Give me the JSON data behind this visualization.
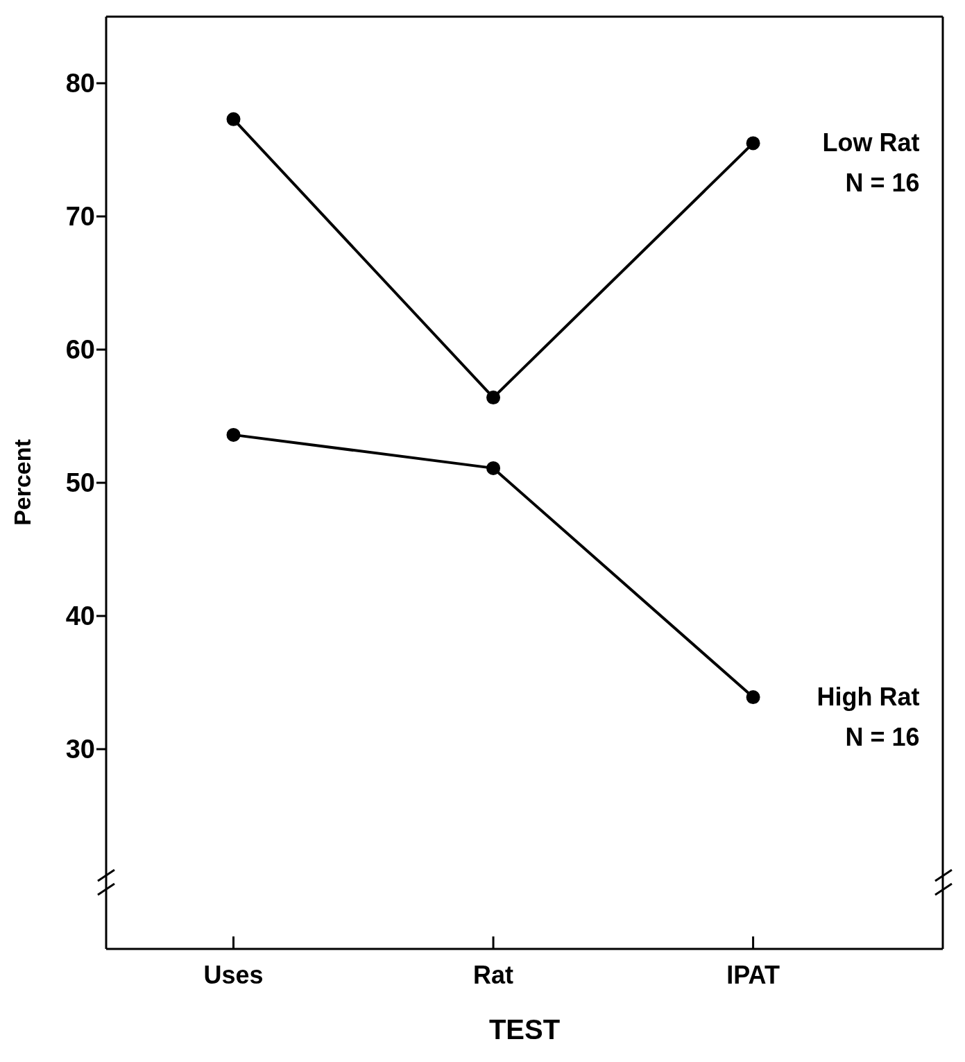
{
  "chart_data": {
    "type": "line",
    "xlabel": "TEST",
    "ylabel": "Percent",
    "categories": [
      "Uses",
      "Rat",
      "IPAT"
    ],
    "series": [
      {
        "name": "Low Rat",
        "color": "#000000",
        "values": [
          77.3,
          56.4,
          75.5
        ]
      },
      {
        "name": "High Rat",
        "color": "#000000",
        "values": [
          53.6,
          51.1,
          33.9
        ]
      }
    ],
    "ylim": [
      15,
      85
    ],
    "yticks": [
      30,
      40,
      50,
      60,
      70,
      80
    ],
    "grid": false,
    "legend": false,
    "marker": "circle",
    "line_style": "solid",
    "annotations": [
      "N = 16",
      "N = 16"
    ]
  }
}
